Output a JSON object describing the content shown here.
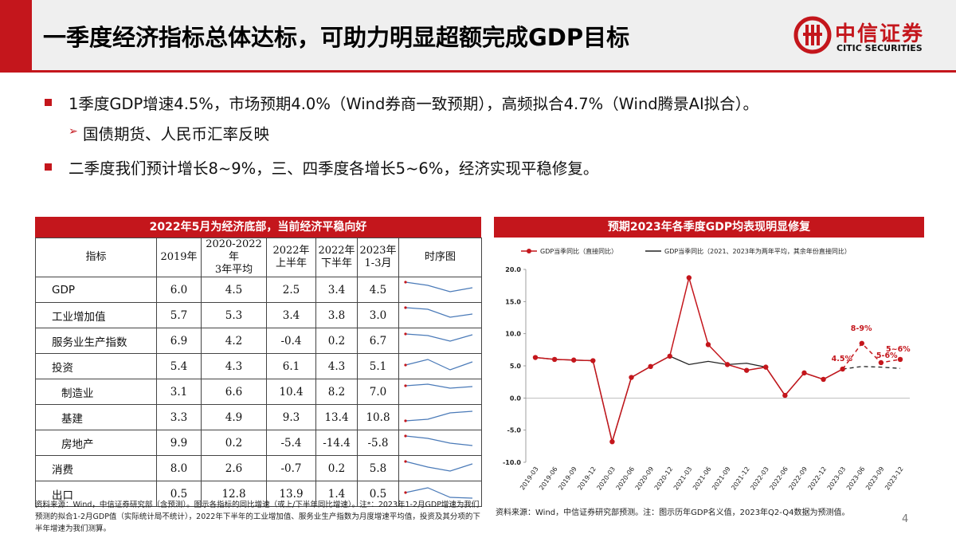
{
  "header": {
    "title": "一季度经济指标总体达标，可助力明显超额完成GDP目标",
    "logo_cn": "中信证券",
    "logo_en": "CITIC SECURITIES"
  },
  "bullets": [
    "1季度GDP增速4.5%，市场预期4.0%（Wind券商一致预期），高频拟合4.7%（Wind腾景AI拟合）。",
    "国债期货、人民币汇率反映",
    "二季度我们预计增长8~9%，三、四季度各增长5~6%，经济实现平稳修复。"
  ],
  "table": {
    "title": "2022年5月为经济底部，当前经济平稳向好",
    "headers": {
      "indicator": "指标",
      "y2019": "2019年",
      "avg_l1": "2020-2022年",
      "avg_l2": "3年平均",
      "h1_l1": "2022年",
      "h1_l2": "上半年",
      "h2_l1": "2022年",
      "h2_l2": "下半年",
      "q1_l1": "2023年",
      "q1_l2": "1-3月",
      "spark": "时序图"
    },
    "rows": [
      {
        "name": "GDP",
        "v2019": "6.0",
        "avg": "4.5",
        "h1": "2.5",
        "h2": "3.4",
        "q1": "4.5"
      },
      {
        "name": "工业增加值",
        "v2019": "5.7",
        "avg": "5.3",
        "h1": "3.4",
        "h2": "3.8",
        "q1": "3.0"
      },
      {
        "name": "服务业生产指数",
        "v2019": "6.9",
        "avg": "4.2",
        "h1": "-0.4",
        "h2": "0.2",
        "q1": "6.7"
      },
      {
        "name": "投资",
        "v2019": "5.4",
        "avg": "4.3",
        "h1": "6.1",
        "h2": "4.3",
        "q1": "5.1"
      },
      {
        "name": "制造业",
        "v2019": "3.1",
        "avg": "6.6",
        "h1": "10.4",
        "h2": "8.2",
        "q1": "7.0"
      },
      {
        "name": "基建",
        "v2019": "3.3",
        "avg": "4.9",
        "h1": "9.3",
        "h2": "13.4",
        "q1": "10.8"
      },
      {
        "name": "房地产",
        "v2019": "9.9",
        "avg": "0.2",
        "h1": "-5.4",
        "h2": "-14.4",
        "q1": "-5.8"
      },
      {
        "name": "消费",
        "v2019": "8.0",
        "avg": "2.6",
        "h1": "-0.7",
        "h2": "0.2",
        "q1": "5.8"
      },
      {
        "name": "出口",
        "v2019": "0.5",
        "avg": "12.8",
        "h1": "13.9",
        "h2": "1.4",
        "q1": "0.5"
      }
    ],
    "source": "资料来源：Wind，中信证券研究部（含预测）。图示各指标的同比增速（或上/下半年同比增速）。注*：2023年1-2月GDP增速为我们预测的拟合1-2月GDP值（实际统计局不统计），2022年下半年的工业增加值、服务业生产指数为月度增速平均值，投资及其分项的下半年增速为我们测算。"
  },
  "colors": {
    "accent": "#c4161c",
    "dark_line": "#222222",
    "spark": "#4a7ab8"
  },
  "chart_data": {
    "type": "line",
    "title": "预期2023年各季度GDP均表现明显修复",
    "categories": [
      "2019-03",
      "2019-06",
      "2019-09",
      "2019-12",
      "2020-03",
      "2020-06",
      "2020-09",
      "2020-12",
      "2021-03",
      "2021-06",
      "2021-09",
      "2021-12",
      "2022-03",
      "2022-06",
      "2022-09",
      "2022-12",
      "2023-03",
      "2023-06",
      "2023-09",
      "2023-12"
    ],
    "ylim": [
      -10,
      20
    ],
    "yticks": [
      "-10.0",
      "-5.0",
      "0.0",
      "5.0",
      "10.0",
      "15.0",
      "20.0"
    ],
    "series": [
      {
        "name": "GDP当季同比（直接同比）",
        "values": [
          6.3,
          6.0,
          5.9,
          5.8,
          -6.8,
          3.2,
          4.9,
          6.5,
          18.7,
          8.3,
          5.2,
          4.3,
          4.8,
          0.4,
          3.9,
          2.9,
          4.5,
          8.5,
          5.5,
          6.0
        ]
      },
      {
        "name": "GDP当季同比（2021、2023年为两年平均，其余年份直接同比）",
        "values": [
          6.3,
          6.0,
          5.9,
          5.8,
          -6.8,
          3.2,
          4.9,
          6.5,
          5.2,
          5.7,
          5.2,
          5.4,
          4.8,
          0.4,
          3.9,
          2.9,
          4.5,
          4.9,
          4.8,
          4.6
        ]
      }
    ],
    "annotations": [
      "4.5%",
      "8-9%",
      "5-6%",
      "5~6%"
    ],
    "source": "资料来源：Wind，中信证券研究部预测。注：图示历年GDP名义值，2023年Q2-Q4数据为预测值。"
  },
  "page_number": "4"
}
